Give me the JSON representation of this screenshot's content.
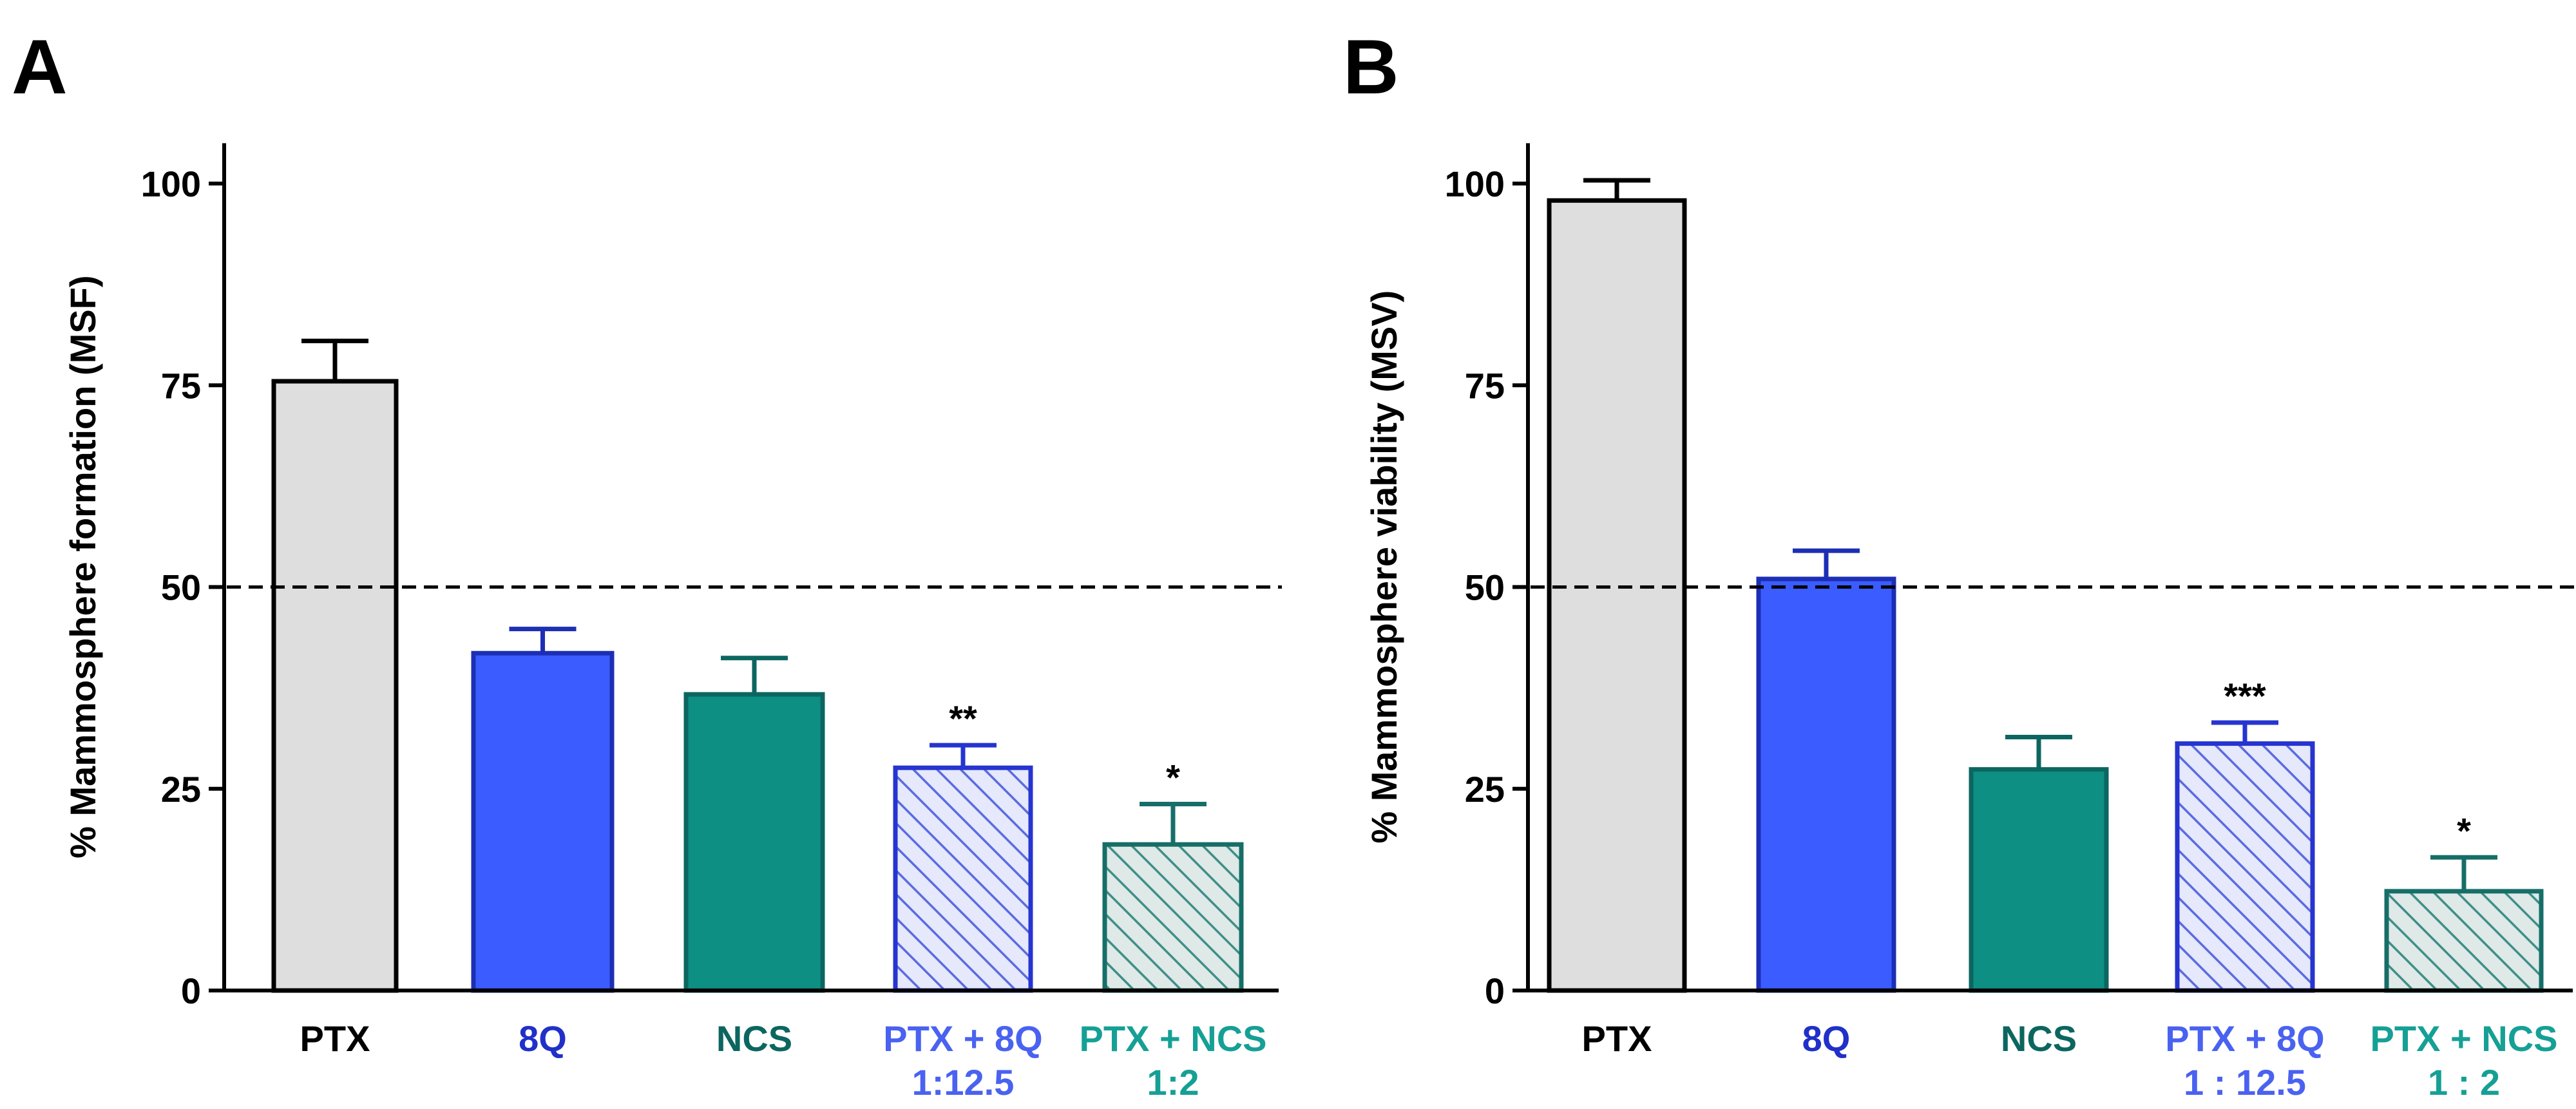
{
  "chart_data": [
    {
      "type": "bar",
      "panel_label": "A",
      "title": "",
      "xlabel": "",
      "ylabel": "% Mammosphere formation (MSF)",
      "ylim": [
        0,
        105
      ],
      "yticks": [
        0,
        25,
        50,
        75,
        100
      ],
      "reference_line": 50,
      "grid": false,
      "legend": "none",
      "bars": [
        {
          "label_lines": [
            "PTX"
          ],
          "value": 75.5,
          "error": 5,
          "color": "#dedede",
          "edge": "#000000",
          "label_color": "#000000",
          "hatch": false,
          "sig": ""
        },
        {
          "label_lines": [
            "8Q"
          ],
          "value": 41.8,
          "error": 3,
          "color": "#3b5cff",
          "edge": "#1c2fb4",
          "label_color": "#2030c8",
          "hatch": false,
          "sig": ""
        },
        {
          "label_lines": [
            "NCS"
          ],
          "value": 36.7,
          "error": 4.5,
          "color": "#0e8f84",
          "edge": "#0c6660",
          "label_color": "#0c6660",
          "hatch": false,
          "sig": ""
        },
        {
          "label_lines": [
            "PTX + 8Q",
            "1:12.5"
          ],
          "value": 27.6,
          "error": 2.8,
          "color": "#e6e8fb",
          "edge": "#2634d0",
          "label_color": "#4a62f0",
          "hatch": true,
          "hatch_color": "#5a6ce0",
          "sig": "**"
        },
        {
          "label_lines": [
            "PTX + NCS",
            "1:2"
          ],
          "value": 18.1,
          "error": 5,
          "color": "#dfe9e7",
          "edge": "#176e68",
          "label_color": "#16a095",
          "hatch": true,
          "hatch_color": "#3f8f88",
          "sig": "*"
        }
      ]
    },
    {
      "type": "bar",
      "panel_label": "B",
      "title": "",
      "xlabel": "",
      "ylabel": "% Mammosphere viability (MSV)",
      "ylim": [
        0,
        105
      ],
      "yticks": [
        0,
        25,
        50,
        75,
        100
      ],
      "reference_line": 50,
      "grid": false,
      "legend": "none",
      "bars": [
        {
          "label_lines": [
            "PTX"
          ],
          "value": 97.9,
          "error": 2.5,
          "color": "#dedede",
          "edge": "#000000",
          "label_color": "#000000",
          "hatch": false,
          "sig": ""
        },
        {
          "label_lines": [
            "8Q"
          ],
          "value": 51,
          "error": 3.5,
          "color": "#3b5cff",
          "edge": "#1c2fb4",
          "label_color": "#2030c8",
          "hatch": false,
          "sig": ""
        },
        {
          "label_lines": [
            "NCS"
          ],
          "value": 27.4,
          "error": 4,
          "color": "#0e8f84",
          "edge": "#0c6660",
          "label_color": "#0c6660",
          "hatch": false,
          "sig": ""
        },
        {
          "label_lines": [
            "PTX + 8Q",
            "1 : 12.5"
          ],
          "value": 30.6,
          "error": 2.6,
          "color": "#e6e8fb",
          "edge": "#2634d0",
          "label_color": "#4a62f0",
          "hatch": true,
          "hatch_color": "#5a6ce0",
          "sig": "***"
        },
        {
          "label_lines": [
            "PTX + NCS",
            "1 : 2"
          ],
          "value": 12.3,
          "error": 4.2,
          "color": "#dfe9e7",
          "edge": "#176e68",
          "label_color": "#16a095",
          "hatch": true,
          "hatch_color": "#3f8f88",
          "sig": "*"
        }
      ]
    }
  ]
}
